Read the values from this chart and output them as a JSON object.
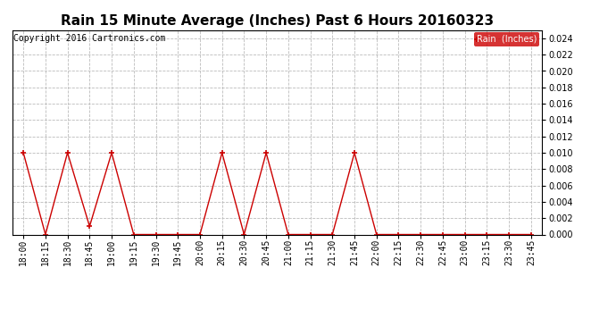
{
  "title": "Rain 15 Minute Average (Inches) Past 6 Hours 20160323",
  "copyright": "Copyright 2016 Cartronics.com",
  "legend_label": "Rain  (Inches)",
  "x_labels": [
    "18:00",
    "18:15",
    "18:30",
    "18:45",
    "19:00",
    "19:15",
    "19:30",
    "19:45",
    "20:00",
    "20:15",
    "20:30",
    "20:45",
    "21:00",
    "21:15",
    "21:30",
    "21:45",
    "22:00",
    "22:15",
    "22:30",
    "22:45",
    "23:00",
    "23:15",
    "23:30",
    "23:45"
  ],
  "y_values": [
    0.01,
    0.0,
    0.01,
    0.001,
    0.01,
    0.0,
    0.0,
    0.0,
    0.0,
    0.01,
    0.0,
    0.01,
    0.0,
    0.0,
    0.0,
    0.01,
    0.0,
    0.0,
    0.0,
    0.0,
    0.0,
    0.0,
    0.0,
    0.0
  ],
  "ylim": [
    0,
    0.025
  ],
  "yticks": [
    0.0,
    0.002,
    0.004,
    0.006,
    0.008,
    0.01,
    0.012,
    0.014,
    0.016,
    0.018,
    0.02,
    0.022,
    0.024
  ],
  "line_color": "#cc0000",
  "marker_color": "#cc0000",
  "background_color": "#ffffff",
  "grid_color": "#bbbbbb",
  "title_fontsize": 11,
  "copyright_fontsize": 7,
  "legend_bg_color": "#cc0000",
  "legend_text_color": "#ffffff",
  "tick_fontsize": 7,
  "ytick_fontsize": 7
}
